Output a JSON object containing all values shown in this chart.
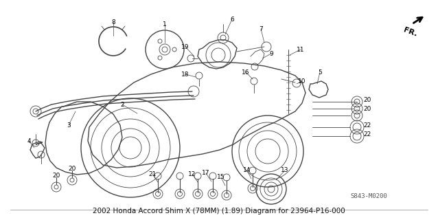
{
  "title": "2002 Honda Accord Shim X (78MM) (1.89) Diagram for 23964-P16-000",
  "bg_color": "#ffffff",
  "diagram_code": "S843-M0200",
  "fr_label": "FR.",
  "line_color": "#444444",
  "font_size": 6.5,
  "fig_width": 6.38,
  "fig_height": 3.2,
  "dpi": 100,
  "title_font_size": 7.5,
  "gray_fill": "#e8e8e8",
  "mid_gray": "#c0c0c0"
}
